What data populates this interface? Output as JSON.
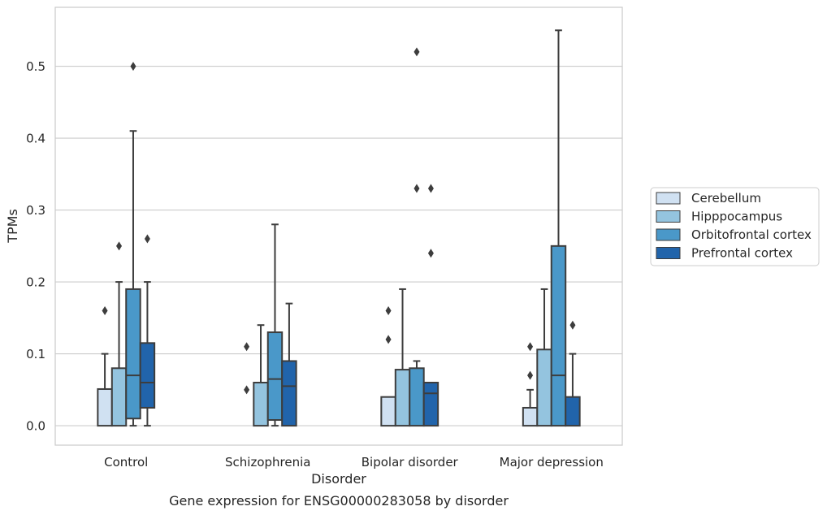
{
  "chart_data": {
    "type": "box",
    "title": "",
    "xlabel": "Disorder",
    "ylabel": "TPMs",
    "caption": "Gene expression for ENSG00000283058 by disorder",
    "ylim": [
      -0.027,
      0.582
    ],
    "yticks": [
      0.0,
      0.1,
      0.2,
      0.3,
      0.4,
      0.5
    ],
    "ytick_labels": [
      "0.0",
      "0.1",
      "0.2",
      "0.3",
      "0.4",
      "0.5"
    ],
    "grid": "horizontal",
    "legend_position": "outside-right",
    "categories": [
      "Control",
      "Schizophrenia",
      "Bipolar disorder",
      "Major depression"
    ],
    "series": [
      {
        "name": "Cerebellum",
        "color": "#d0e1f2",
        "boxes": [
          {
            "whisker_low": 0.0,
            "q1": 0.0,
            "median": 0.0,
            "q3": 0.051,
            "whisker_high": 0.1,
            "outliers": [
              0.16
            ]
          },
          {
            "whisker_low": 0.0,
            "q1": 0.0,
            "median": 0.0,
            "q3": 0.0,
            "whisker_high": 0.0,
            "outliers": [
              0.05,
              0.11
            ]
          },
          {
            "whisker_low": 0.0,
            "q1": 0.0,
            "median": 0.0,
            "q3": 0.04,
            "whisker_high": 0.04,
            "outliers": [
              0.12,
              0.16
            ]
          },
          {
            "whisker_low": 0.0,
            "q1": 0.0,
            "median": 0.0,
            "q3": 0.025,
            "whisker_high": 0.05,
            "outliers": [
              0.07,
              0.11
            ]
          }
        ]
      },
      {
        "name": "Hipppocampus",
        "color": "#94c4df",
        "boxes": [
          {
            "whisker_low": 0.0,
            "q1": 0.0,
            "median": 0.0,
            "q3": 0.08,
            "whisker_high": 0.2,
            "outliers": [
              0.25
            ]
          },
          {
            "whisker_low": 0.0,
            "q1": 0.0,
            "median": 0.0,
            "q3": 0.06,
            "whisker_high": 0.14,
            "outliers": []
          },
          {
            "whisker_low": 0.0,
            "q1": 0.0,
            "median": 0.0,
            "q3": 0.078,
            "whisker_high": 0.19,
            "outliers": []
          },
          {
            "whisker_low": 0.0,
            "q1": 0.0,
            "median": 0.0,
            "q3": 0.106,
            "whisker_high": 0.19,
            "outliers": []
          }
        ]
      },
      {
        "name": "Orbitofrontal cortex",
        "color": "#4a98c9",
        "boxes": [
          {
            "whisker_low": 0.0,
            "q1": 0.01,
            "median": 0.07,
            "q3": 0.19,
            "whisker_high": 0.41,
            "outliers": [
              0.5
            ]
          },
          {
            "whisker_low": 0.0,
            "q1": 0.008,
            "median": 0.065,
            "q3": 0.13,
            "whisker_high": 0.28,
            "outliers": []
          },
          {
            "whisker_low": 0.0,
            "q1": 0.0,
            "median": 0.0,
            "q3": 0.08,
            "whisker_high": 0.09,
            "outliers": [
              0.33,
              0.52
            ]
          },
          {
            "whisker_low": 0.0,
            "q1": 0.0,
            "median": 0.07,
            "q3": 0.25,
            "whisker_high": 0.55,
            "outliers": []
          }
        ]
      },
      {
        "name": "Prefrontal cortex",
        "color": "#2164ab",
        "boxes": [
          {
            "whisker_low": 0.0,
            "q1": 0.025,
            "median": 0.06,
            "q3": 0.115,
            "whisker_high": 0.2,
            "outliers": [
              0.26
            ]
          },
          {
            "whisker_low": 0.0,
            "q1": 0.0,
            "median": 0.055,
            "q3": 0.09,
            "whisker_high": 0.17,
            "outliers": []
          },
          {
            "whisker_low": 0.0,
            "q1": 0.0,
            "median": 0.045,
            "q3": 0.06,
            "whisker_high": 0.06,
            "outliers": [
              0.24,
              0.33
            ]
          },
          {
            "whisker_low": 0.0,
            "q1": 0.0,
            "median": 0.0,
            "q3": 0.04,
            "whisker_high": 0.1,
            "outliers": [
              0.14
            ]
          }
        ]
      }
    ]
  }
}
